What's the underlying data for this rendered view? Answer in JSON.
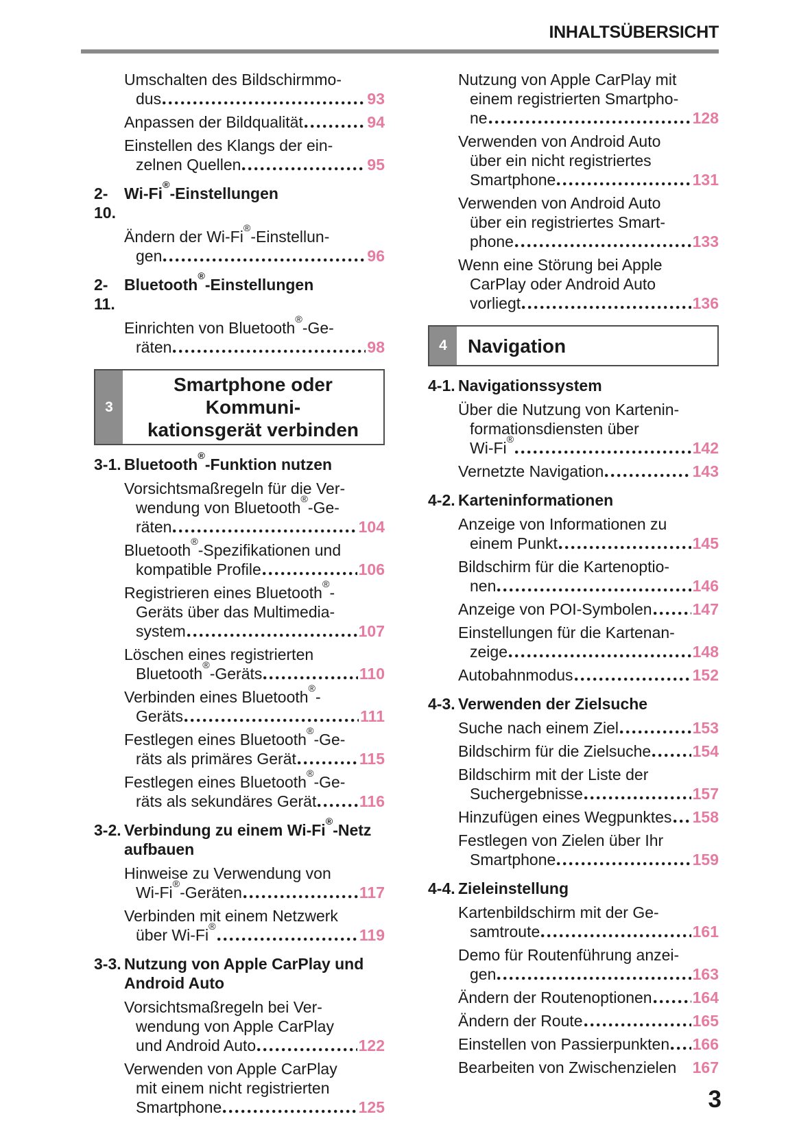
{
  "header": {
    "title": "INHALTSÜBERSICHT"
  },
  "footer": {
    "page_number": "3"
  },
  "colors": {
    "accent_pink": "#e57ba0",
    "box_gray": "#8d8d8d",
    "box_border": "#4c4c4c",
    "rule_gray": "#8a8a8a",
    "text": "#1a1a1a"
  },
  "columns": [
    {
      "blocks": [
        {
          "type": "entries",
          "items": [
            {
              "lines": [
                "Umschalten des Bildschirmmo-",
                "dus"
              ],
              "page": "93"
            },
            {
              "lines": [
                "Anpassen der Bildqualität"
              ],
              "page": "94"
            },
            {
              "lines": [
                "Einstellen des Klangs der ein-",
                "zelnen Quellen"
              ],
              "page": "95"
            }
          ]
        },
        {
          "type": "section",
          "number": "2-10.",
          "title": [
            "Wi-Fi®-Einstellungen"
          ]
        },
        {
          "type": "entries",
          "items": [
            {
              "lines": [
                "Ändern der Wi-Fi®-Einstellun-",
                "gen"
              ],
              "page": "96"
            }
          ]
        },
        {
          "type": "section",
          "number": "2-11.",
          "title": [
            "Bluetooth®-Einstellungen"
          ]
        },
        {
          "type": "entries",
          "items": [
            {
              "lines": [
                "Einrichten von Bluetooth®-Ge-",
                "räten"
              ],
              "page": "98"
            }
          ]
        },
        {
          "type": "chapter",
          "number": "3",
          "align": "center",
          "title": [
            "Smartphone oder Kommuni-",
            "kationsgerät verbinden"
          ]
        },
        {
          "type": "section",
          "number": "3-1.",
          "title": [
            "Bluetooth®-Funktion nutzen"
          ]
        },
        {
          "type": "entries",
          "items": [
            {
              "lines": [
                "Vorsichtsmaßregeln für die Ver-",
                "wendung von Bluetooth®-Ge-",
                "räten"
              ],
              "page": "104"
            },
            {
              "lines": [
                "Bluetooth®-Spezifikationen und",
                "kompatible Profile"
              ],
              "page": "106"
            },
            {
              "lines": [
                "Registrieren eines Bluetooth®-",
                "Geräts über das Multimedia-",
                "system"
              ],
              "page": "107"
            },
            {
              "lines": [
                "Löschen eines registrierten",
                "Bluetooth®-Geräts"
              ],
              "page": "110"
            },
            {
              "lines": [
                "Verbinden eines Bluetooth®-",
                "Geräts"
              ],
              "page": "111"
            },
            {
              "lines": [
                "Festlegen eines Bluetooth®-Ge-",
                "räts als primäres Gerät"
              ],
              "page": "115"
            },
            {
              "lines": [
                "Festlegen eines Bluetooth®-Ge-",
                "räts als sekundäres Gerät"
              ],
              "page": "116"
            }
          ]
        },
        {
          "type": "section",
          "number": "3-2.",
          "title": [
            "Verbindung zu einem Wi-Fi®-Netz",
            "aufbauen"
          ]
        },
        {
          "type": "entries",
          "items": [
            {
              "lines": [
                "Hinweise zu Verwendung von",
                "Wi-Fi®-Geräten"
              ],
              "page": "117"
            },
            {
              "lines": [
                "Verbinden mit einem Netzwerk",
                "über Wi-Fi®"
              ],
              "page": "119"
            }
          ]
        },
        {
          "type": "section",
          "number": "3-3.",
          "title": [
            "Nutzung von Apple CarPlay und",
            "Android Auto"
          ]
        },
        {
          "type": "entries",
          "items": [
            {
              "lines": [
                "Vorsichtsmaßregeln bei Ver-",
                "wendung von Apple CarPlay",
                "und Android Auto"
              ],
              "page": "122"
            },
            {
              "lines": [
                "Verwenden von Apple CarPlay",
                "mit einem nicht registrierten",
                "Smartphone"
              ],
              "page": "125"
            }
          ]
        }
      ]
    },
    {
      "blocks": [
        {
          "type": "entries",
          "items": [
            {
              "lines": [
                "Nutzung von Apple CarPlay mit",
                "einem registrierten Smartpho-",
                "ne"
              ],
              "page": "128"
            },
            {
              "lines": [
                "Verwenden von Android Auto",
                "über ein nicht registriertes",
                "Smartphone"
              ],
              "page": "131"
            },
            {
              "lines": [
                "Verwenden von Android Auto",
                "über ein registriertes Smart-",
                "phone"
              ],
              "page": "133"
            },
            {
              "lines": [
                "Wenn eine Störung bei Apple",
                "CarPlay oder Android Auto",
                "vorliegt"
              ],
              "page": "136"
            }
          ]
        },
        {
          "type": "chapter",
          "number": "4",
          "align": "left",
          "title": [
            "Navigation"
          ]
        },
        {
          "type": "section",
          "number": "4-1.",
          "title": [
            "Navigationssystem"
          ]
        },
        {
          "type": "entries",
          "items": [
            {
              "lines": [
                "Über die Nutzung von Kartenin-",
                "formationsdiensten über",
                "Wi-Fi®"
              ],
              "page": "142"
            },
            {
              "lines": [
                "Vernetzte Navigation"
              ],
              "page": "143"
            }
          ]
        },
        {
          "type": "section",
          "number": "4-2.",
          "title": [
            "Karteninformationen"
          ]
        },
        {
          "type": "entries",
          "items": [
            {
              "lines": [
                "Anzeige von Informationen zu",
                "einem Punkt"
              ],
              "page": "145"
            },
            {
              "lines": [
                "Bildschirm für die Kartenoptio-",
                "nen"
              ],
              "page": "146"
            },
            {
              "lines": [
                "Anzeige von POI-Symbolen"
              ],
              "page": "147"
            },
            {
              "lines": [
                "Einstellungen für die Kartenan-",
                "zeige"
              ],
              "page": "148"
            },
            {
              "lines": [
                "Autobahnmodus"
              ],
              "page": "152"
            }
          ]
        },
        {
          "type": "section",
          "number": "4-3.",
          "title": [
            "Verwenden der Zielsuche"
          ]
        },
        {
          "type": "entries",
          "items": [
            {
              "lines": [
                "Suche nach einem Ziel"
              ],
              "page": "153"
            },
            {
              "lines": [
                "Bildschirm für die Zielsuche"
              ],
              "page": "154"
            },
            {
              "lines": [
                "Bildschirm mit der Liste der",
                "Suchergebnisse"
              ],
              "page": "157"
            },
            {
              "lines": [
                "Hinzufügen eines Wegpunktes"
              ],
              "page": "158"
            },
            {
              "lines": [
                "Festlegen von Zielen über Ihr",
                "Smartphone"
              ],
              "page": "159"
            }
          ]
        },
        {
          "type": "section",
          "number": "4-4.",
          "title": [
            "Zieleinstellung"
          ]
        },
        {
          "type": "entries",
          "items": [
            {
              "lines": [
                "Kartenbildschirm mit der Ge-",
                "samtroute"
              ],
              "page": "161"
            },
            {
              "lines": [
                "Demo für Routenführung anzei-",
                "gen"
              ],
              "page": "163"
            },
            {
              "lines": [
                "Ändern der Routenoptionen"
              ],
              "page": "164"
            },
            {
              "lines": [
                "Ändern der Route"
              ],
              "page": "165"
            },
            {
              "lines": [
                "Einstellen von Passierpunkten"
              ],
              "page": "166"
            },
            {
              "lines": [
                "Bearbeiten von Zwischenzielen"
              ],
              "page": "167",
              "leader": false
            }
          ]
        }
      ]
    }
  ]
}
